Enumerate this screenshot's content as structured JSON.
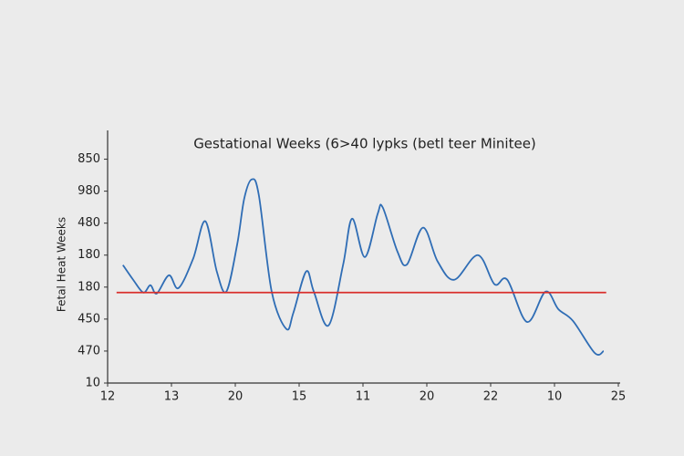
{
  "chart_data": {
    "type": "line",
    "title": "Gestational Weeks (6>40 lypks (betl teer Minitee)",
    "y_label": "Fetal Heat Weeks",
    "xlim": [
      0,
      8
    ],
    "xticks": [
      {
        "value": 0,
        "label": "12"
      },
      {
        "value": 1,
        "label": "13"
      },
      {
        "value": 2,
        "label": "20"
      },
      {
        "value": 3,
        "label": "15"
      },
      {
        "value": 4,
        "label": "11"
      },
      {
        "value": 5,
        "label": "20"
      },
      {
        "value": 6,
        "label": "22"
      },
      {
        "value": 7,
        "label": "10"
      },
      {
        "value": 8,
        "label": "25"
      }
    ],
    "ylim": [
      0,
      7.9
    ],
    "yticks": [
      {
        "value": 0,
        "label": "10"
      },
      {
        "value": 1,
        "label": "470"
      },
      {
        "value": 2,
        "label": "450"
      },
      {
        "value": 3,
        "label": "180"
      },
      {
        "value": 4,
        "label": "180"
      },
      {
        "value": 5,
        "label": "480"
      },
      {
        "value": 6,
        "label": "980"
      },
      {
        "value": 7,
        "label": "850"
      }
    ],
    "series": [
      {
        "color": "#2f6db5",
        "x": [
          0.24,
          0.4,
          0.56,
          0.67,
          0.77,
          0.96,
          1.11,
          1.34,
          1.53,
          1.71,
          1.86,
          2.03,
          2.14,
          2.26,
          2.37,
          2.57,
          2.8,
          2.91,
          3.11,
          3.23,
          3.46,
          3.69,
          3.83,
          4.03,
          4.23,
          4.31,
          4.54,
          4.69,
          4.94,
          5.17,
          5.43,
          5.8,
          6.06,
          6.26,
          6.57,
          6.86,
          7.06,
          7.29,
          7.63,
          7.77
        ],
        "values": [
          3.69,
          3.23,
          2.83,
          3.06,
          2.8,
          3.37,
          2.97,
          3.89,
          5.06,
          3.49,
          2.86,
          4.34,
          5.77,
          6.37,
          5.86,
          2.86,
          1.69,
          2.2,
          3.49,
          2.86,
          1.8,
          3.71,
          5.14,
          3.94,
          5.29,
          5.49,
          4.11,
          3.71,
          4.86,
          3.8,
          3.23,
          4.0,
          3.09,
          3.23,
          1.91,
          2.86,
          2.31,
          1.94,
          0.94,
          1.0
        ]
      },
      {
        "color": "#d9302c",
        "x": [
          0.14,
          7.81
        ],
        "values": [
          2.83,
          2.83
        ]
      }
    ]
  }
}
